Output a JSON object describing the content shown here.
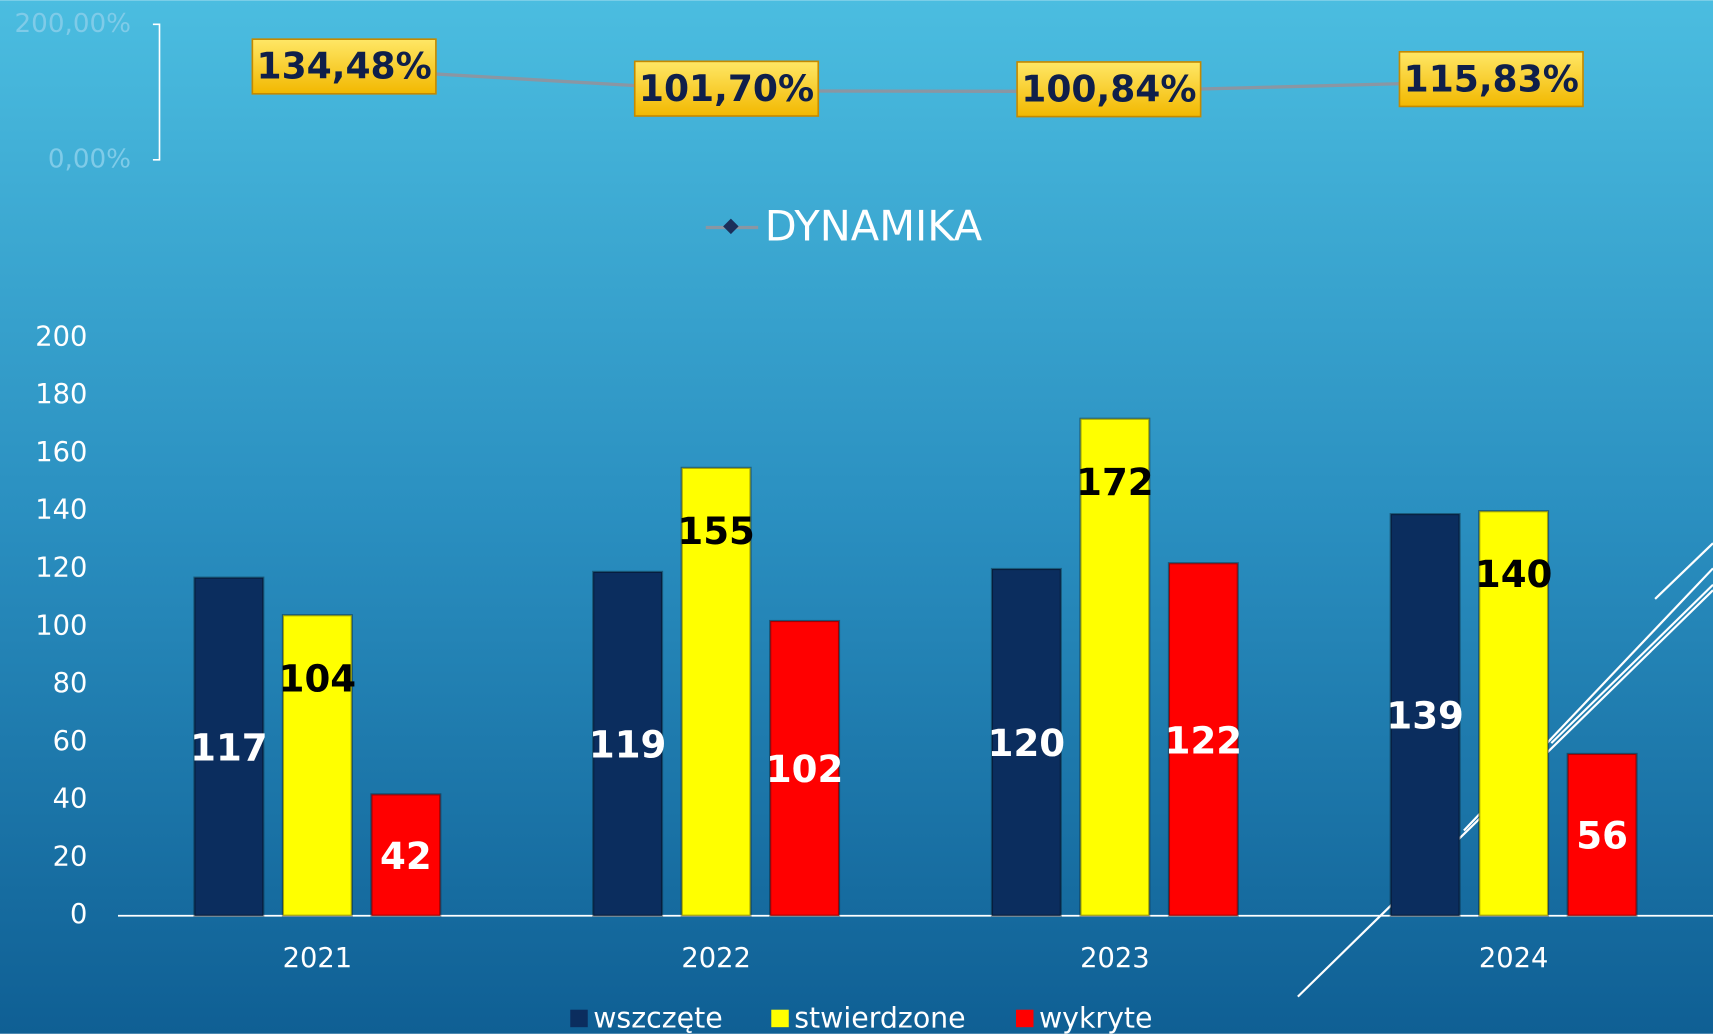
{
  "chart_data": [
    {
      "type": "line",
      "series": [
        {
          "name": "DYNAMIKA",
          "color": "#8a96a3",
          "marker_color": "#1b2f5a",
          "values": [
            134.48,
            101.7,
            100.84,
            115.83
          ],
          "value_labels": [
            "134,48%",
            "101,70%",
            "100,84%",
            "115,83%"
          ]
        }
      ],
      "ylim": [
        0,
        200
      ],
      "yticks": [
        {
          "value": 0,
          "label": "0,00%"
        },
        {
          "value": 200,
          "label": "200,00%"
        }
      ],
      "grid": false,
      "legend": "bottom"
    },
    {
      "type": "bar",
      "categories": [
        "2021",
        "2022",
        "2023",
        "2024"
      ],
      "series": [
        {
          "name": "wszczęte",
          "color": "#0b2d5e",
          "label_color": "#ffffff",
          "values": [
            117,
            119,
            120,
            139
          ]
        },
        {
          "name": "stwierdzone",
          "color": "#ffff00",
          "label_color": "#000000",
          "values": [
            104,
            155,
            172,
            140
          ]
        },
        {
          "name": "wykryte",
          "color": "#ff0000",
          "label_color": "#ffffff",
          "values": [
            42,
            102,
            122,
            56
          ]
        }
      ],
      "ylim": [
        0,
        200
      ],
      "yticks": [
        0,
        20,
        40,
        60,
        80,
        100,
        120,
        140,
        160,
        180,
        200
      ],
      "grid": false,
      "legend": "bottom"
    }
  ]
}
